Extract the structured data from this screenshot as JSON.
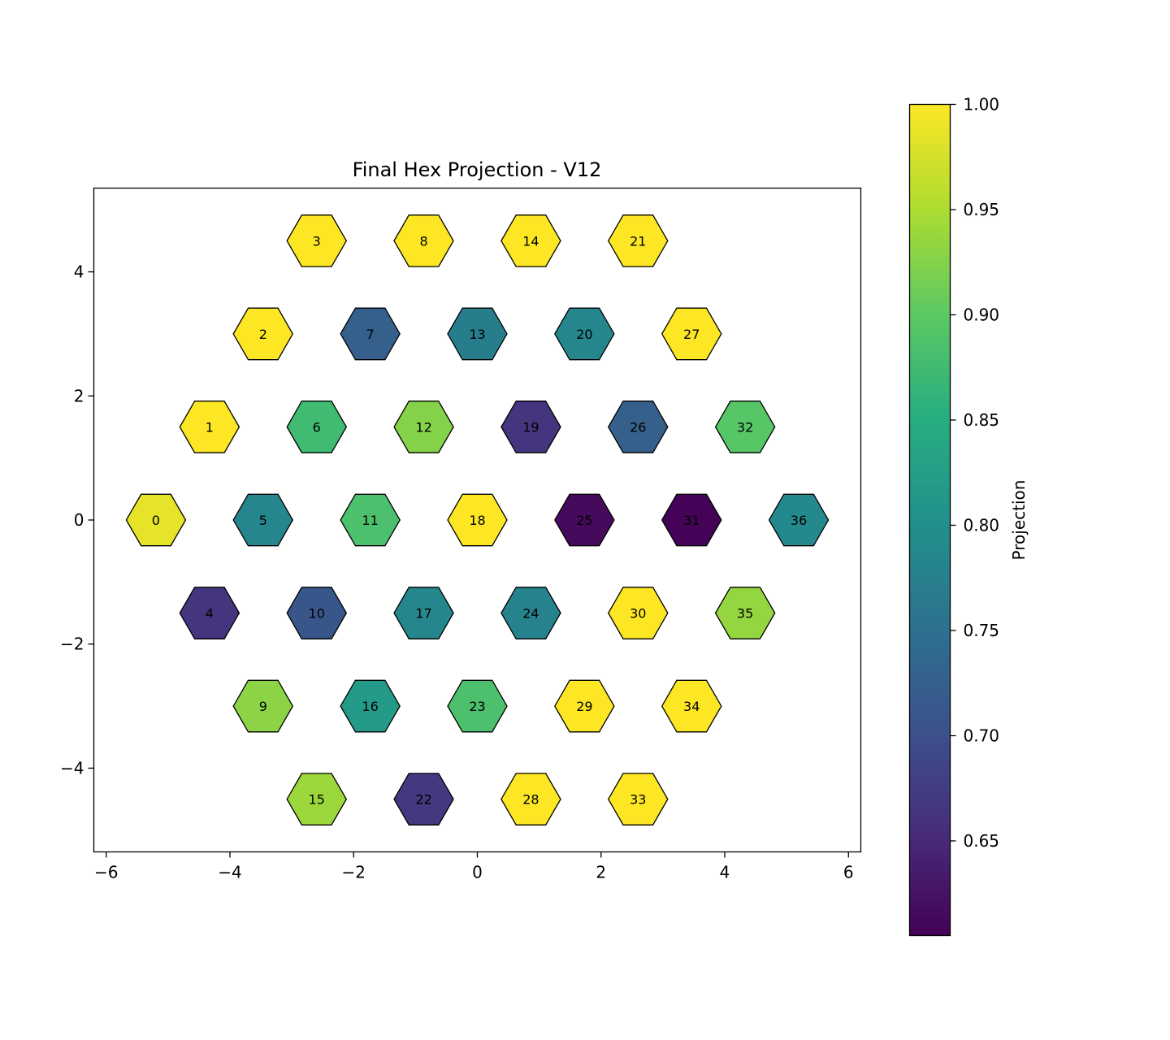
{
  "chart_data": {
    "type": "heatmap",
    "title": "Final Hex Projection - V12",
    "xlabel": "",
    "ylabel": "",
    "xlim": [
      -6.2,
      6.2
    ],
    "ylim": [
      -5.35,
      5.35
    ],
    "x_ticks": [
      -6,
      -4,
      -2,
      0,
      2,
      4,
      6
    ],
    "y_ticks": [
      -4,
      -2,
      0,
      2,
      4
    ],
    "x_tick_labels": [
      "−6",
      "−4",
      "−2",
      "0",
      "2",
      "4",
      "6"
    ],
    "y_tick_labels": [
      "−4",
      "−2",
      "0",
      "2",
      "4"
    ],
    "grid": false,
    "colormap": "viridis",
    "colorbar": {
      "label": "Projection",
      "range": [
        0.605,
        1.0
      ],
      "ticks": [
        0.65,
        0.7,
        0.75,
        0.8,
        0.85,
        0.9,
        0.95,
        1.0
      ],
      "tick_labels": [
        "0.65",
        "0.70",
        "0.75",
        "0.80",
        "0.85",
        "0.90",
        "0.95",
        "1.00"
      ]
    },
    "cells": [
      {
        "id": "0",
        "x": -5.196,
        "y": 0.0,
        "value": 0.985
      },
      {
        "id": "1",
        "x": -4.33,
        "y": 1.5,
        "value": 1.0
      },
      {
        "id": "2",
        "x": -3.464,
        "y": 3.0,
        "value": 1.0
      },
      {
        "id": "3",
        "x": -2.598,
        "y": 4.5,
        "value": 1.0
      },
      {
        "id": "4",
        "x": -4.33,
        "y": -1.5,
        "value": 0.665
      },
      {
        "id": "5",
        "x": -3.464,
        "y": 0.0,
        "value": 0.785
      },
      {
        "id": "6",
        "x": -2.598,
        "y": 1.5,
        "value": 0.875
      },
      {
        "id": "7",
        "x": -1.732,
        "y": 3.0,
        "value": 0.725
      },
      {
        "id": "8",
        "x": -0.866,
        "y": 4.5,
        "value": 1.0
      },
      {
        "id": "9",
        "x": -3.464,
        "y": -3.0,
        "value": 0.93
      },
      {
        "id": "10",
        "x": -2.598,
        "y": -1.5,
        "value": 0.71
      },
      {
        "id": "11",
        "x": -1.732,
        "y": 0.0,
        "value": 0.885
      },
      {
        "id": "12",
        "x": -0.866,
        "y": 1.5,
        "value": 0.925
      },
      {
        "id": "13",
        "x": 0.0,
        "y": 3.0,
        "value": 0.77
      },
      {
        "id": "14",
        "x": 0.866,
        "y": 4.5,
        "value": 1.0
      },
      {
        "id": "15",
        "x": -2.598,
        "y": -4.5,
        "value": 0.94
      },
      {
        "id": "16",
        "x": -1.732,
        "y": -3.0,
        "value": 0.82
      },
      {
        "id": "17",
        "x": -0.866,
        "y": -1.5,
        "value": 0.785
      },
      {
        "id": "18",
        "x": 0.0,
        "y": 0.0,
        "value": 1.0
      },
      {
        "id": "19",
        "x": 0.866,
        "y": 1.5,
        "value": 0.665
      },
      {
        "id": "20",
        "x": 1.732,
        "y": 3.0,
        "value": 0.785
      },
      {
        "id": "21",
        "x": 2.598,
        "y": 4.5,
        "value": 1.0
      },
      {
        "id": "22",
        "x": -0.866,
        "y": -4.5,
        "value": 0.67
      },
      {
        "id": "23",
        "x": 0.0,
        "y": -3.0,
        "value": 0.885
      },
      {
        "id": "24",
        "x": 0.866,
        "y": -1.5,
        "value": 0.78
      },
      {
        "id": "25",
        "x": 1.732,
        "y": 0.0,
        "value": 0.615
      },
      {
        "id": "26",
        "x": 2.598,
        "y": 1.5,
        "value": 0.725
      },
      {
        "id": "27",
        "x": 3.464,
        "y": 3.0,
        "value": 1.0
      },
      {
        "id": "28",
        "x": 0.866,
        "y": -4.5,
        "value": 1.0
      },
      {
        "id": "29",
        "x": 1.732,
        "y": -3.0,
        "value": 1.0
      },
      {
        "id": "30",
        "x": 2.598,
        "y": -1.5,
        "value": 1.0
      },
      {
        "id": "31",
        "x": 3.464,
        "y": 0.0,
        "value": 0.607
      },
      {
        "id": "32",
        "x": 4.33,
        "y": 1.5,
        "value": 0.895
      },
      {
        "id": "33",
        "x": 2.598,
        "y": -4.5,
        "value": 1.0
      },
      {
        "id": "34",
        "x": 3.464,
        "y": -3.0,
        "value": 1.0
      },
      {
        "id": "35",
        "x": 4.33,
        "y": -1.5,
        "value": 0.935
      },
      {
        "id": "36",
        "x": 5.196,
        "y": 0.0,
        "value": 0.79
      }
    ]
  }
}
